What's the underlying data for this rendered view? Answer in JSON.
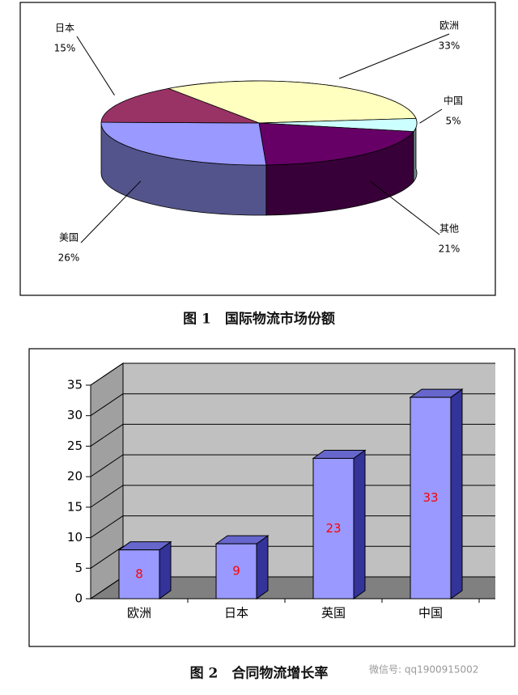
{
  "chart_data": [
    {
      "type": "pie3d",
      "title": "图 1　国际物流市场份额",
      "categories": [
        "欧洲",
        "中国",
        "其他",
        "美国",
        "日本"
      ],
      "values": [
        33,
        5,
        21,
        26,
        15
      ],
      "value_labels": [
        "33%",
        "5%",
        "21%",
        "26%",
        "15%"
      ],
      "colors": [
        "#ffffc0",
        "#ccffff",
        "#660066",
        "#9999ff",
        "#993366"
      ]
    },
    {
      "type": "bar3d",
      "title": "图 2　合同物流增长率",
      "categories": [
        "欧洲",
        "日本",
        "英国",
        "中国"
      ],
      "values": [
        8,
        9,
        23,
        33
      ],
      "color": "#9999ff",
      "label_color": "#ff0000",
      "ylim": [
        0,
        35
      ],
      "yticks": [
        0,
        5,
        10,
        15,
        20,
        25,
        30,
        35
      ],
      "grid": true
    }
  ],
  "watermark": "微信号: qq1900915002"
}
